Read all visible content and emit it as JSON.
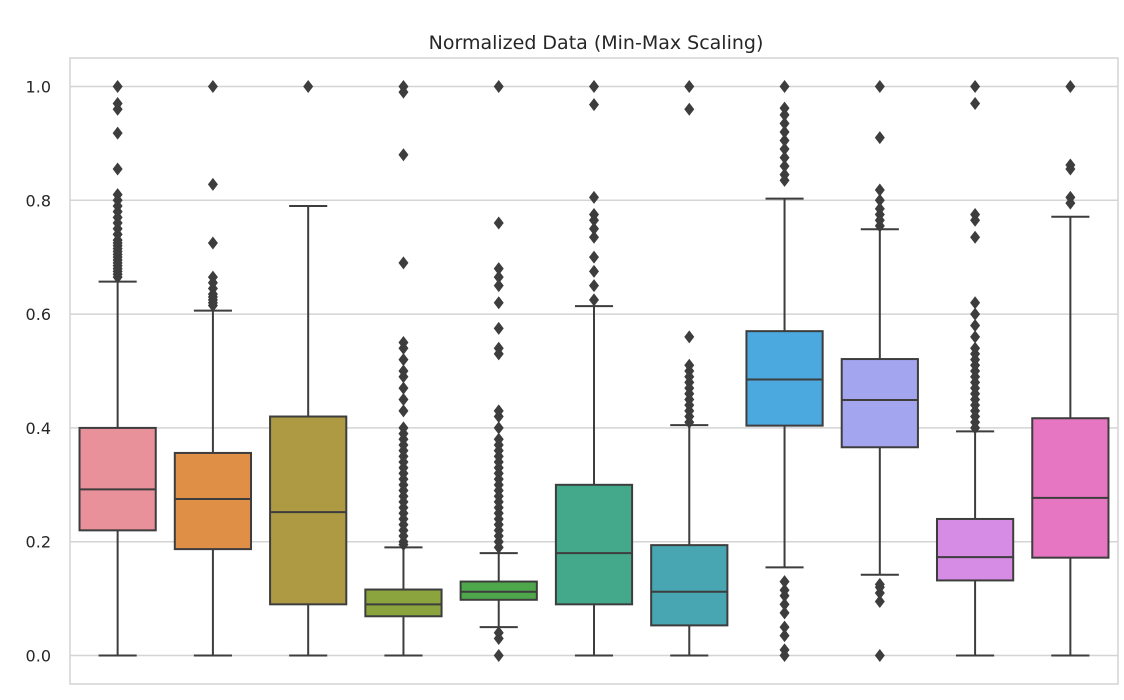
{
  "chart_data": {
    "type": "boxplot",
    "title": "Normalized Data (Min-Max Scaling)",
    "xlabel": "",
    "ylabel": "",
    "ylim": [
      -0.05,
      1.05
    ],
    "yticks": [
      0.0,
      0.2,
      0.4,
      0.6,
      0.8,
      1.0
    ],
    "ytick_labels": [
      "0.0",
      "0.2",
      "0.4",
      "0.6",
      "0.8",
      "1.0"
    ],
    "grid": "horizontal",
    "background": "#ffffff",
    "grid_color": "#d4d4d4",
    "line_color": "#3d3d3d",
    "boxes": [
      {
        "color": "#e8919b",
        "whisker_low": 0.0,
        "q1": 0.22,
        "median": 0.292,
        "q3": 0.4,
        "whisker_high": 0.657,
        "outliers": [
          0.665,
          0.67,
          0.675,
          0.68,
          0.685,
          0.69,
          0.695,
          0.7,
          0.705,
          0.71,
          0.715,
          0.72,
          0.725,
          0.73,
          0.74,
          0.75,
          0.76,
          0.77,
          0.78,
          0.79,
          0.8,
          0.81,
          0.855,
          0.918,
          0.96,
          0.97,
          1.0
        ]
      },
      {
        "color": "#df8f46",
        "whisker_low": 0.0,
        "q1": 0.187,
        "median": 0.275,
        "q3": 0.356,
        "whisker_high": 0.606,
        "outliers": [
          0.615,
          0.62,
          0.625,
          0.63,
          0.635,
          0.645,
          0.655,
          0.665,
          0.725,
          0.828,
          1.0
        ]
      },
      {
        "color": "#ad9a43",
        "whisker_low": 0.0,
        "q1": 0.09,
        "median": 0.252,
        "q3": 0.42,
        "whisker_high": 0.79,
        "outliers": [
          1.0
        ]
      },
      {
        "color": "#8ba43e",
        "whisker_low": 0.0,
        "q1": 0.069,
        "median": 0.09,
        "q3": 0.116,
        "whisker_high": 0.19,
        "outliers": [
          0.195,
          0.2,
          0.21,
          0.22,
          0.23,
          0.24,
          0.25,
          0.26,
          0.27,
          0.28,
          0.29,
          0.3,
          0.31,
          0.32,
          0.33,
          0.34,
          0.35,
          0.36,
          0.37,
          0.38,
          0.39,
          0.4,
          0.43,
          0.45,
          0.47,
          0.49,
          0.5,
          0.52,
          0.54,
          0.55,
          0.69,
          0.88,
          0.99,
          1.0
        ]
      },
      {
        "color": "#4ea84b",
        "whisker_low": 0.05,
        "q1": 0.098,
        "median": 0.112,
        "q3": 0.13,
        "whisker_high": 0.18,
        "outliers": [
          0.0,
          0.03,
          0.04,
          0.19,
          0.2,
          0.21,
          0.22,
          0.23,
          0.24,
          0.25,
          0.26,
          0.27,
          0.28,
          0.29,
          0.3,
          0.31,
          0.32,
          0.33,
          0.34,
          0.35,
          0.36,
          0.37,
          0.38,
          0.4,
          0.42,
          0.43,
          0.53,
          0.54,
          0.575,
          0.62,
          0.65,
          0.665,
          0.68,
          0.76,
          1.0
        ]
      },
      {
        "color": "#44a98b",
        "whisker_low": 0.0,
        "q1": 0.09,
        "median": 0.18,
        "q3": 0.3,
        "whisker_high": 0.614,
        "outliers": [
          0.625,
          0.65,
          0.675,
          0.7,
          0.735,
          0.75,
          0.765,
          0.775,
          0.805,
          0.968,
          1.0
        ]
      },
      {
        "color": "#47a6b1",
        "whisker_low": 0.0,
        "q1": 0.053,
        "median": 0.112,
        "q3": 0.194,
        "whisker_high": 0.405,
        "outliers": [
          0.41,
          0.42,
          0.43,
          0.44,
          0.45,
          0.46,
          0.47,
          0.48,
          0.49,
          0.5,
          0.51,
          0.56,
          0.96,
          1.0
        ]
      },
      {
        "color": "#4ba9df",
        "whisker_low": 0.155,
        "q1": 0.404,
        "median": 0.485,
        "q3": 0.57,
        "whisker_high": 0.803,
        "outliers": [
          0.0,
          0.01,
          0.035,
          0.05,
          0.075,
          0.09,
          0.105,
          0.115,
          0.13,
          0.835,
          0.845,
          0.86,
          0.875,
          0.89,
          0.905,
          0.92,
          0.935,
          0.95,
          0.962,
          1.0
        ]
      },
      {
        "color": "#a3a5ef",
        "whisker_low": 0.142,
        "q1": 0.366,
        "median": 0.449,
        "q3": 0.521,
        "whisker_high": 0.749,
        "outliers": [
          0.0,
          0.095,
          0.11,
          0.12,
          0.125,
          0.755,
          0.765,
          0.775,
          0.785,
          0.8,
          0.818,
          0.91,
          1.0
        ]
      },
      {
        "color": "#d68ce4",
        "whisker_low": 0.0,
        "q1": 0.132,
        "median": 0.173,
        "q3": 0.24,
        "whisker_high": 0.394,
        "outliers": [
          0.4,
          0.41,
          0.42,
          0.43,
          0.44,
          0.45,
          0.46,
          0.47,
          0.48,
          0.49,
          0.5,
          0.51,
          0.52,
          0.53,
          0.54,
          0.56,
          0.58,
          0.6,
          0.62,
          0.735,
          0.765,
          0.775,
          0.97,
          1.0
        ]
      },
      {
        "color": "#e776c2",
        "whisker_low": 0.0,
        "q1": 0.172,
        "median": 0.277,
        "q3": 0.417,
        "whisker_high": 0.771,
        "outliers": [
          0.795,
          0.805,
          0.855,
          0.862,
          1.0
        ]
      }
    ]
  }
}
